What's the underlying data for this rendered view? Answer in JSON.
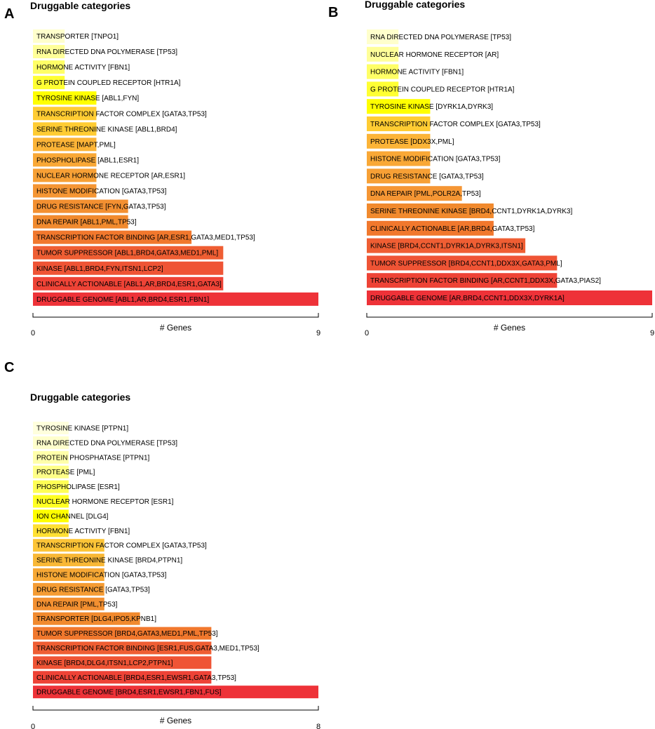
{
  "chart_data": [
    {
      "panel_letter": "A",
      "type": "bar",
      "orientation": "horizontal",
      "title": "Druggable categories",
      "xlabel": "# Genes",
      "xlim": [
        0,
        9
      ],
      "xticks": [
        "0",
        "9"
      ],
      "categories": [
        "TRANSPORTER [TNPO1]",
        "RNA DIRECTED DNA POLYMERASE [TP53]",
        "HORMONE ACTIVITY [FBN1]",
        "G PROTEIN COUPLED RECEPTOR [HTR1A]",
        "TYROSINE KINASE [ABL1,FYN]",
        "TRANSCRIPTION FACTOR COMPLEX [GATA3,TP53]",
        "SERINE THREONINE KINASE [ABL1,BRD4]",
        "PROTEASE [MAPT,PML]",
        "PHOSPHOLIPASE [ABL1,ESR1]",
        "NUCLEAR HORMONE RECEPTOR [AR,ESR1]",
        "HISTONE MODIFICATION [GATA3,TP53]",
        "DRUG RESISTANCE [FYN,GATA3,TP53]",
        "DNA REPAIR [ABL1,PML,TP53]",
        "TRANSCRIPTION FACTOR BINDING [AR,ESR1,GATA3,MED1,TP53]",
        "TUMOR SUPPRESSOR [ABL1,BRD4,GATA3,MED1,PML]",
        "KINASE [ABL1,BRD4,FYN,ITSN1,LCP2]",
        "CLINICALLY ACTIONABLE [ABL1,AR,BRD4,ESR1,GATA3]",
        "DRUGGABLE GENOME [ABL1,AR,BRD4,ESR1,FBN1]"
      ],
      "values": [
        1,
        1,
        1,
        1,
        2,
        2,
        2,
        2,
        2,
        2,
        2,
        3,
        3,
        5,
        6,
        6,
        6,
        9
      ],
      "colors": [
        "#ffffcc",
        "#ffff99",
        "#ffff66",
        "#ffff33",
        "#ffff00",
        "#ffcc33",
        "#ffcc33",
        "#fcb437",
        "#f9a836",
        "#f7a035",
        "#f59634",
        "#f39031",
        "#f18a2e",
        "#f1782d",
        "#ef5e33",
        "#ef5435",
        "#ee4336",
        "#ee3238"
      ]
    },
    {
      "panel_letter": "B",
      "type": "bar",
      "orientation": "horizontal",
      "title": "Druggable categories",
      "xlabel": "# Genes",
      "xlim": [
        0,
        9
      ],
      "xticks": [
        "0",
        "9"
      ],
      "categories": [
        "RNA DIRECTED DNA POLYMERASE [TP53]",
        "NUCLEAR HORMONE RECEPTOR [AR]",
        "HORMONE ACTIVITY [FBN1]",
        "G PROTEIN COUPLED RECEPTOR [HTR1A]",
        "TYROSINE KINASE [DYRK1A,DYRK3]",
        "TRANSCRIPTION FACTOR COMPLEX [GATA3,TP53]",
        "PROTEASE [DDX3X,PML]",
        "HISTONE MODIFICATION [GATA3,TP53]",
        "DRUG RESISTANCE [GATA3,TP53]",
        "DNA REPAIR [PML,POLR2A,TP53]",
        "SERINE THREONINE KINASE [BRD4,CCNT1,DYRK1A,DYRK3]",
        "CLINICALLY ACTIONABLE [AR,BRD4,GATA3,TP53]",
        "KINASE [BRD4,CCNT1,DYRK1A,DYRK3,ITSN1]",
        "TUMOR SUPPRESSOR [BRD4,CCNT1,DDX3X,GATA3,PML]",
        "TRANSCRIPTION FACTOR BINDING [AR,CCNT1,DDX3X,GATA3,PIAS2]",
        "DRUGGABLE GENOME [AR,BRD4,CCNT1,DDX3X,DYRK1A]"
      ],
      "values": [
        1,
        1,
        1,
        1,
        2,
        2,
        2,
        2,
        2,
        3,
        4,
        4,
        5,
        6,
        6,
        9
      ],
      "colors": [
        "#ffffcc",
        "#ffff99",
        "#ffff66",
        "#ffff33",
        "#ffff00",
        "#ffcc33",
        "#fcb437",
        "#f9a836",
        "#f7a035",
        "#f59634",
        "#f18a2e",
        "#f1782d",
        "#ef5e33",
        "#ef5435",
        "#ee4336",
        "#ee3238"
      ]
    },
    {
      "panel_letter": "C",
      "type": "bar",
      "orientation": "horizontal",
      "title": "Druggable categories",
      "xlabel": "# Genes",
      "xlim": [
        0,
        8
      ],
      "xticks": [
        "0",
        "8"
      ],
      "categories": [
        "TYROSINE KINASE [PTPN1]",
        "RNA DIRECTED DNA POLYMERASE [TP53]",
        "PROTEIN PHOSPHATASE [PTPN1]",
        "PROTEASE [PML]",
        "PHOSPHOLIPASE [ESR1]",
        "NUCLEAR HORMONE RECEPTOR [ESR1]",
        "ION CHANNEL [DLG4]",
        "HORMONE ACTIVITY [FBN1]",
        "TRANSCRIPTION FACTOR COMPLEX [GATA3,TP53]",
        "SERINE THREONINE KINASE [BRD4,PTPN1]",
        "HISTONE MODIFICATION [GATA3,TP53]",
        "DRUG RESISTANCE [GATA3,TP53]",
        "DNA REPAIR [PML,TP53]",
        "TRANSPORTER [DLG4,IPO5,KPNB1]",
        "TUMOR SUPPRESSOR [BRD4,GATA3,MED1,PML,TP53]",
        "TRANSCRIPTION FACTOR BINDING [ESR1,FUS,GATA3,MED1,TP53]",
        "KINASE [BRD4,DLG4,ITSN1,LCP2,PTPN1]",
        "CLINICALLY ACTIONABLE [BRD4,ESR1,EWSR1,GATA3,TP53]",
        "DRUGGABLE GENOME [BRD4,ESR1,EWSR1,FBN1,FUS]"
      ],
      "values": [
        1,
        1,
        1,
        1,
        1,
        1,
        1,
        1,
        2,
        2,
        2,
        2,
        2,
        3,
        5,
        5,
        5,
        5,
        8
      ],
      "colors": [
        "#ffffdd",
        "#ffffcc",
        "#ffffaa",
        "#ffff88",
        "#ffff55",
        "#ffff22",
        "#ffff00",
        "#ffe033",
        "#fcc437",
        "#f9b836",
        "#f7a835",
        "#f59c34",
        "#f39031",
        "#f18a2e",
        "#f1782d",
        "#ef5e33",
        "#ef5435",
        "#ee4336",
        "#ee3238"
      ]
    }
  ]
}
